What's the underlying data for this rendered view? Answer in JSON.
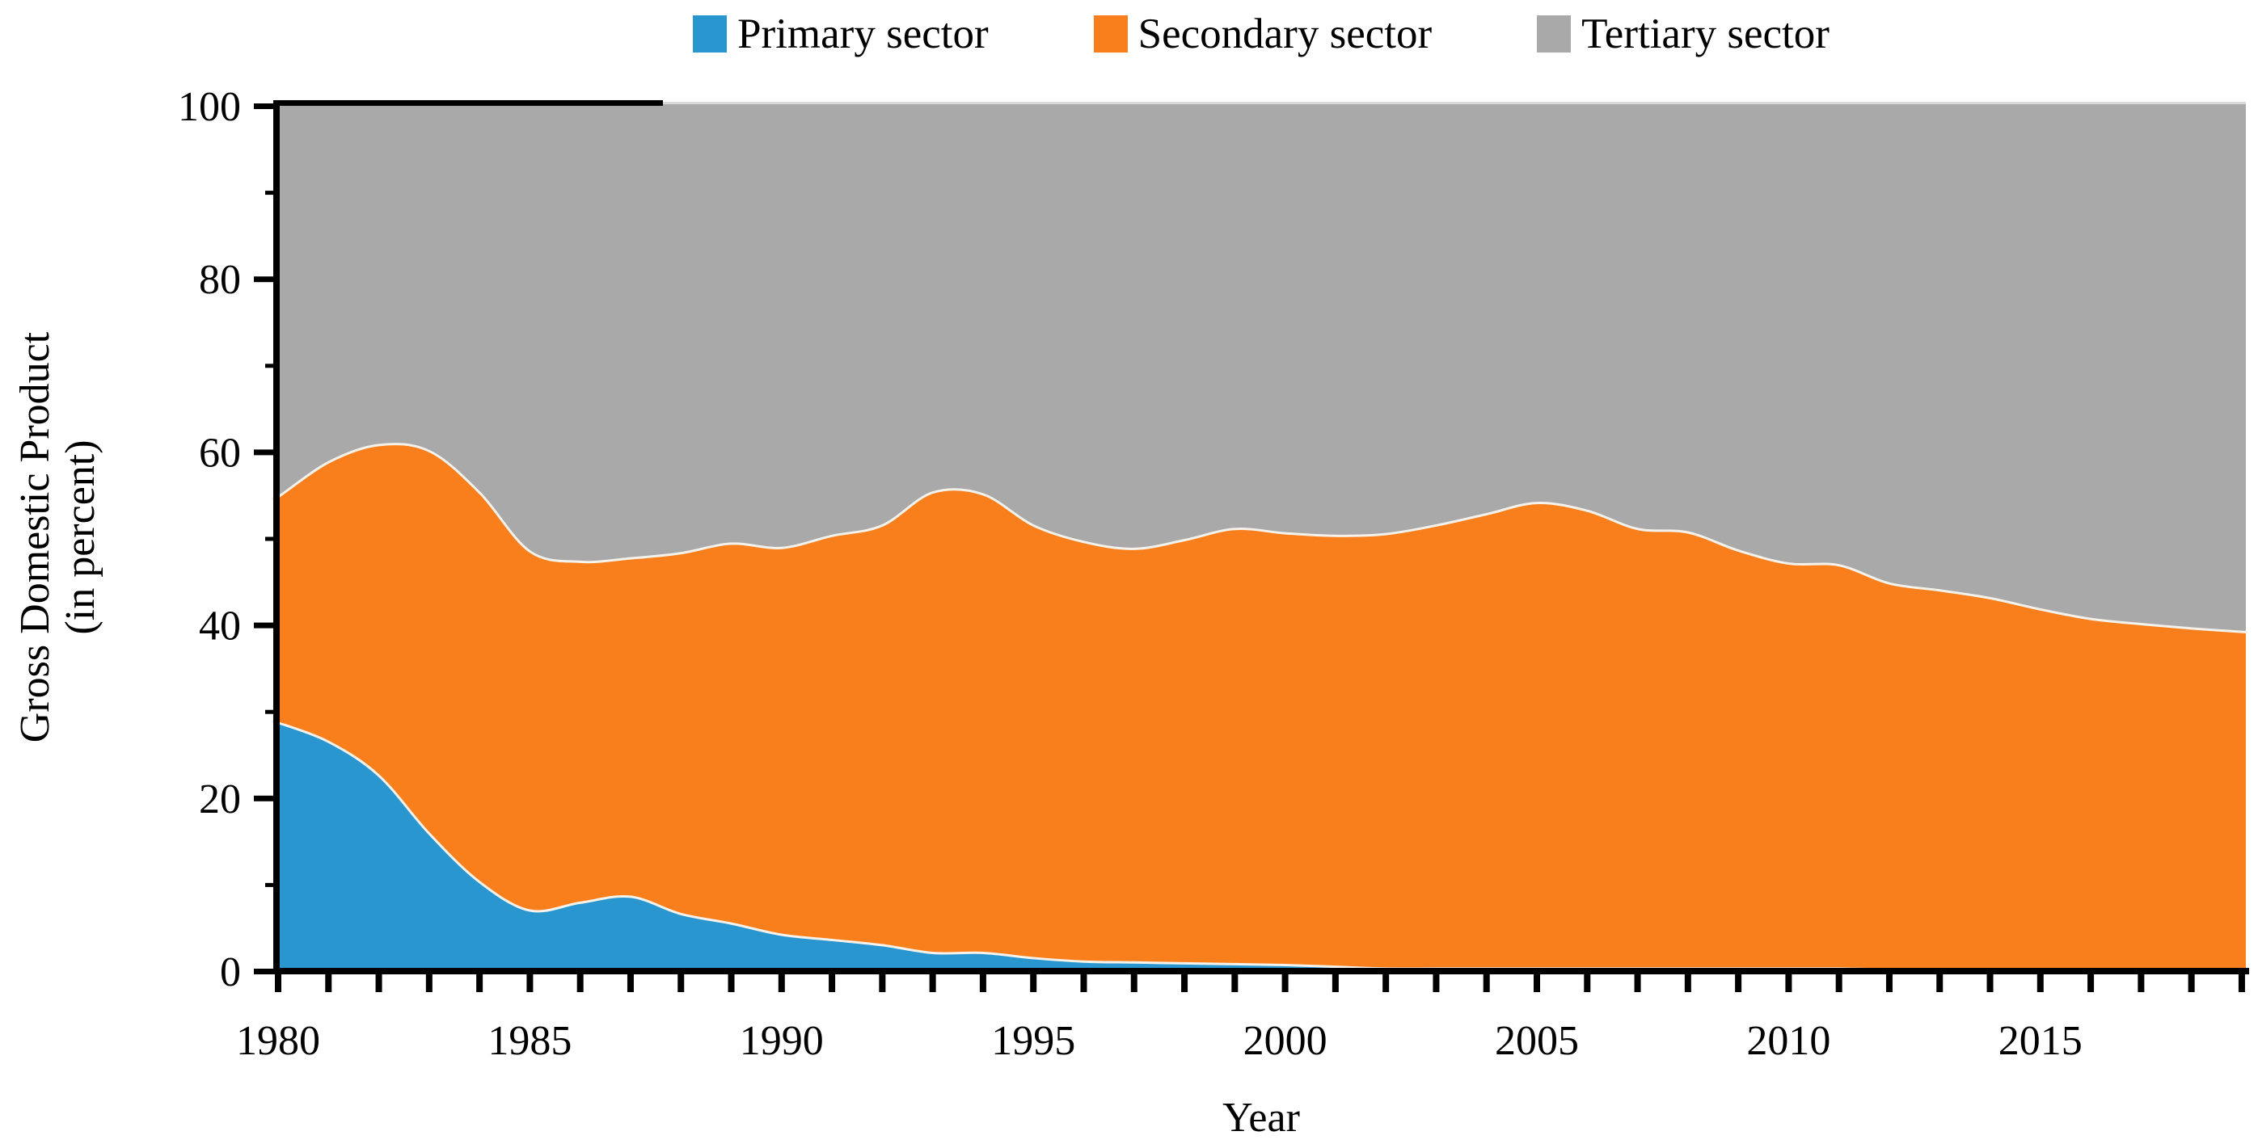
{
  "chart_data": {
    "type": "area",
    "stacked": true,
    "units": "percent of GDP",
    "title": "",
    "xlabel": "Year",
    "ylabel_line1": "Gross Domestic Product",
    "ylabel_line2": "(in percent)",
    "xlim": [
      1980,
      2019
    ],
    "ylim": [
      0,
      100
    ],
    "grid": false,
    "legend_position": "top-center",
    "x": [
      1980,
      1981,
      1982,
      1983,
      1984,
      1985,
      1986,
      1987,
      1988,
      1989,
      1990,
      1991,
      1992,
      1993,
      1994,
      1995,
      1996,
      1997,
      1998,
      1999,
      2000,
      2001,
      2002,
      2003,
      2004,
      2005,
      2006,
      2007,
      2008,
      2009,
      2010,
      2011,
      2012,
      2013,
      2014,
      2015,
      2016,
      2017,
      2018,
      2019
    ],
    "series": [
      {
        "name": "Primary sector",
        "color": "#2a96cf",
        "values": [
          28.7,
          26.5,
          22.6,
          15.9,
          10.3,
          7.0,
          7.9,
          8.6,
          6.6,
          5.5,
          4.2,
          3.6,
          3.0,
          2.1,
          2.1,
          1.5,
          1.1,
          1.0,
          0.9,
          0.8,
          0.7,
          0.5,
          0.3,
          0.3,
          0.3,
          0.3,
          0.3,
          0.3,
          0.3,
          0.3,
          0.3,
          0.3,
          0.2,
          0.2,
          0.2,
          0.2,
          0.2,
          0.2,
          0.2,
          0.2
        ]
      },
      {
        "name": "Secondary sector",
        "color": "#f97f1d",
        "values": [
          26.1,
          32.3,
          38.2,
          44.2,
          45.0,
          41.5,
          39.4,
          39.1,
          41.7,
          43.9,
          44.7,
          46.7,
          48.5,
          53.2,
          53.0,
          50.0,
          48.5,
          47.8,
          48.9,
          50.3,
          49.9,
          49.8,
          50.2,
          51.2,
          52.5,
          53.8,
          52.9,
          50.8,
          50.4,
          48.3,
          46.8,
          46.6,
          44.6,
          43.8,
          42.9,
          41.6,
          40.5,
          39.9,
          39.4,
          39.0
        ]
      },
      {
        "name": "Tertiary sector",
        "color": "#a9a9a9",
        "values": [
          45.2,
          41.2,
          39.2,
          39.9,
          44.7,
          51.5,
          52.7,
          52.3,
          51.7,
          50.6,
          51.1,
          49.7,
          48.5,
          44.7,
          44.9,
          48.5,
          50.4,
          51.2,
          50.2,
          48.9,
          49.4,
          49.7,
          49.5,
          48.5,
          47.2,
          45.9,
          46.8,
          48.9,
          49.3,
          51.4,
          52.9,
          53.1,
          55.2,
          56.0,
          56.9,
          58.2,
          59.3,
          59.9,
          60.4,
          60.8
        ]
      }
    ],
    "legend": [
      {
        "label": "Primary sector",
        "color": "#2a96cf"
      },
      {
        "label": "Secondary sector",
        "color": "#f97f1d"
      },
      {
        "label": "Tertiary sector",
        "color": "#a9a9a9"
      }
    ],
    "y_ticks_major": [
      0,
      20,
      40,
      60,
      80,
      100
    ],
    "y_ticks_minor": [
      10,
      30,
      50,
      70,
      90
    ],
    "y_tick_labels": [
      "0",
      "20",
      "40",
      "60",
      "80",
      "100"
    ],
    "x_ticks_labeled": [
      1980,
      1985,
      1990,
      1995,
      2000,
      2005,
      2010,
      2015
    ],
    "x_tick_labels": [
      "1980",
      "1985",
      "1990",
      "1995",
      "2000",
      "2005",
      "2010",
      "2015"
    ],
    "boundary_stroke_color": "#f5f2ec"
  }
}
